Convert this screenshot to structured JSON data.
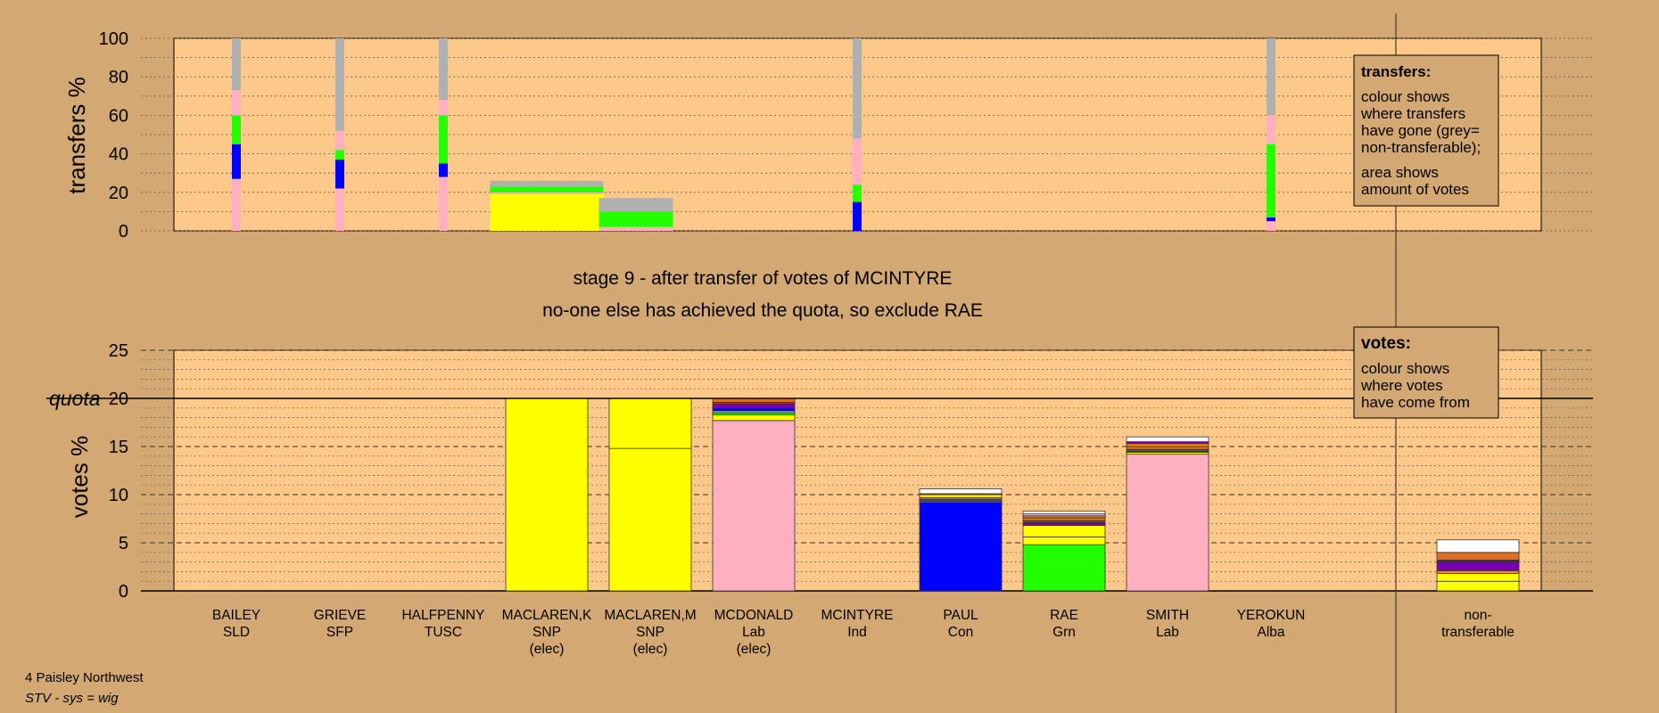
{
  "colors": {
    "background": "#d4a872",
    "plot_area": "#fdc98a",
    "SNP": "#ffff00",
    "Lab": "#ffb0c0",
    "Con": "#0000ff",
    "Grn": "#22ff00",
    "non_transferable": "#b0b0b0",
    "Alba": "#7b00b4",
    "TUSC": "#e07020",
    "SFP": "#8b4513",
    "SLD": "#ff8c00",
    "Ind": "#ffffff"
  },
  "stage_title": "stage 9 - after transfer of votes of MCINTYRE",
  "stage_subtitle": "no-one else has achieved the quota, so exclude RAE",
  "footer": {
    "constituency": "4 Paisley Northwest",
    "system": "STV - sys = wig"
  },
  "chart_data": [
    {
      "type": "bar",
      "name": "transfers",
      "ylabel": "transfers %",
      "ylim": [
        0,
        100
      ],
      "yticks": [
        0,
        20,
        40,
        60,
        80,
        100
      ],
      "grid": true,
      "legend": {
        "title": "transfers:",
        "lines1": [
          "colour shows",
          "where transfers",
          "have gone (grey=",
          "non-transferable);"
        ],
        "lines2": [
          "area shows",
          "amount of votes"
        ],
        "position": "top-right"
      },
      "bars": [
        {
          "candidate": "BAILEY",
          "width_scale": "thin",
          "segments": [
            {
              "party": "Lab",
              "value": 27
            },
            {
              "party": "Con",
              "value": 18
            },
            {
              "party": "Grn",
              "value": 15
            },
            {
              "party": "Lab",
              "value": 13
            },
            {
              "party": "non_transferable",
              "value": 27
            }
          ]
        },
        {
          "candidate": "GRIEVE",
          "width_scale": "thin",
          "segments": [
            {
              "party": "Lab",
              "value": 22
            },
            {
              "party": "Con",
              "value": 15
            },
            {
              "party": "Grn",
              "value": 5
            },
            {
              "party": "Lab",
              "value": 10
            },
            {
              "party": "non_transferable",
              "value": 48
            }
          ]
        },
        {
          "candidate": "HALFPENNY",
          "width_scale": "thin",
          "segments": [
            {
              "party": "Lab",
              "value": 28
            },
            {
              "party": "Con",
              "value": 7
            },
            {
              "party": "Grn",
              "value": 25
            },
            {
              "party": "Lab",
              "value": 8
            },
            {
              "party": "non_transferable",
              "value": 32
            }
          ]
        },
        {
          "candidate": "MACLAREN,K",
          "width_scale": "wide",
          "segments": [
            {
              "party": "SNP",
              "value": 19
            },
            {
              "party": "Lab",
              "value": 1
            },
            {
              "party": "Grn",
              "value": 3
            },
            {
              "party": "non_transferable",
              "value": 3
            }
          ]
        },
        {
          "candidate": "MACLAREN,M",
          "width_scale": "medium",
          "segments": [
            {
              "party": "Lab",
              "value": 2
            },
            {
              "party": "Grn",
              "value": 8
            },
            {
              "party": "non_transferable",
              "value": 7
            }
          ]
        },
        {
          "candidate": "MCINTYRE",
          "width_scale": "thin",
          "segments": [
            {
              "party": "Con",
              "value": 15
            },
            {
              "party": "Grn",
              "value": 9
            },
            {
              "party": "Lab",
              "value": 24
            },
            {
              "party": "non_transferable",
              "value": 52
            }
          ]
        },
        {
          "candidate": "YEROKUN",
          "width_scale": "thin",
          "segments": [
            {
              "party": "Lab",
              "value": 5
            },
            {
              "party": "Con",
              "value": 2
            },
            {
              "party": "Grn",
              "value": 38
            },
            {
              "party": "Lab",
              "value": 15
            },
            {
              "party": "non_transferable",
              "value": 40
            }
          ]
        }
      ]
    },
    {
      "type": "bar",
      "name": "votes",
      "ylabel": "votes %",
      "ylim": [
        0,
        25
      ],
      "yticks": [
        0,
        5,
        10,
        15,
        20,
        25
      ],
      "quota": 20,
      "quota_label": "quota",
      "grid": true,
      "legend": {
        "title": "votes:",
        "lines": [
          "colour shows",
          "where votes",
          "have come from"
        ],
        "position": "top-right"
      },
      "categories": [
        {
          "name": "BAILEY",
          "party": "SLD",
          "note": ""
        },
        {
          "name": "GRIEVE",
          "party": "SFP",
          "note": ""
        },
        {
          "name": "HALFPENNY",
          "party": "TUSC",
          "note": ""
        },
        {
          "name": "MACLAREN,K",
          "party": "SNP",
          "note": "(elec)"
        },
        {
          "name": "MACLAREN,M",
          "party": "SNP",
          "note": "(elec)"
        },
        {
          "name": "MCDONALD",
          "party": "Lab",
          "note": "(elec)"
        },
        {
          "name": "MCINTYRE",
          "party": "Ind",
          "note": ""
        },
        {
          "name": "PAUL",
          "party": "Con",
          "note": ""
        },
        {
          "name": "RAE",
          "party": "Grn",
          "note": ""
        },
        {
          "name": "SMITH",
          "party": "Lab",
          "note": ""
        },
        {
          "name": "YEROKUN",
          "party": "Alba",
          "note": ""
        },
        {
          "name": "non-",
          "party": "transferable",
          "note": ""
        }
      ],
      "stacks": [
        [],
        [],
        [],
        [
          {
            "party": "SNP",
            "value": 20
          }
        ],
        [
          {
            "party": "SNP",
            "value": 14.8
          },
          {
            "party": "SNP",
            "value": 5.2
          }
        ],
        [
          {
            "party": "Lab",
            "value": 17.7
          },
          {
            "party": "SNP",
            "value": 0.6
          },
          {
            "party": "Grn",
            "value": 0.2
          },
          {
            "party": "non_transferable",
            "value": 0.2
          },
          {
            "party": "Con",
            "value": 0.3
          },
          {
            "party": "Alba",
            "value": 0.4
          },
          {
            "party": "SFP",
            "value": 0.2
          },
          {
            "party": "TUSC",
            "value": 0.4
          }
        ],
        [],
        [
          {
            "party": "Con",
            "value": 9.2
          },
          {
            "party": "Lab",
            "value": 0.1
          },
          {
            "party": "SFP",
            "value": 0.2
          },
          {
            "party": "TUSC",
            "value": 0.2
          },
          {
            "party": "SNP",
            "value": 0.3
          },
          {
            "party": "SLD",
            "value": 0.1
          },
          {
            "party": "Ind",
            "value": 0.5
          }
        ],
        [
          {
            "party": "Grn",
            "value": 4.8
          },
          {
            "party": "SNP",
            "value": 0.8
          },
          {
            "party": "SNP",
            "value": 1.2
          },
          {
            "party": "Alba",
            "value": 0.3
          },
          {
            "party": "SFP",
            "value": 0.2
          },
          {
            "party": "TUSC",
            "value": 0.3
          },
          {
            "party": "SLD",
            "value": 0.2
          },
          {
            "party": "Lab",
            "value": 0.2
          },
          {
            "party": "Ind",
            "value": 0.3
          }
        ],
        [
          {
            "party": "Lab",
            "value": 14.2
          },
          {
            "party": "SNP",
            "value": 0.2
          },
          {
            "party": "Grn",
            "value": 0.1
          },
          {
            "party": "SFP",
            "value": 0.2
          },
          {
            "party": "TUSC",
            "value": 0.3
          },
          {
            "party": "SLD",
            "value": 0.3
          },
          {
            "party": "Alba",
            "value": 0.2
          },
          {
            "party": "Ind",
            "value": 0.5
          }
        ],
        [],
        [
          {
            "party": "SNP",
            "value": 1.0
          },
          {
            "party": "SNP",
            "value": 0.8
          },
          {
            "party": "SLD",
            "value": 0.3
          },
          {
            "party": "Alba",
            "value": 0.9
          },
          {
            "party": "Alba",
            "value": 0.2
          },
          {
            "party": "TUSC",
            "value": 0.8
          },
          {
            "party": "Ind",
            "value": 1.3
          }
        ]
      ]
    }
  ]
}
